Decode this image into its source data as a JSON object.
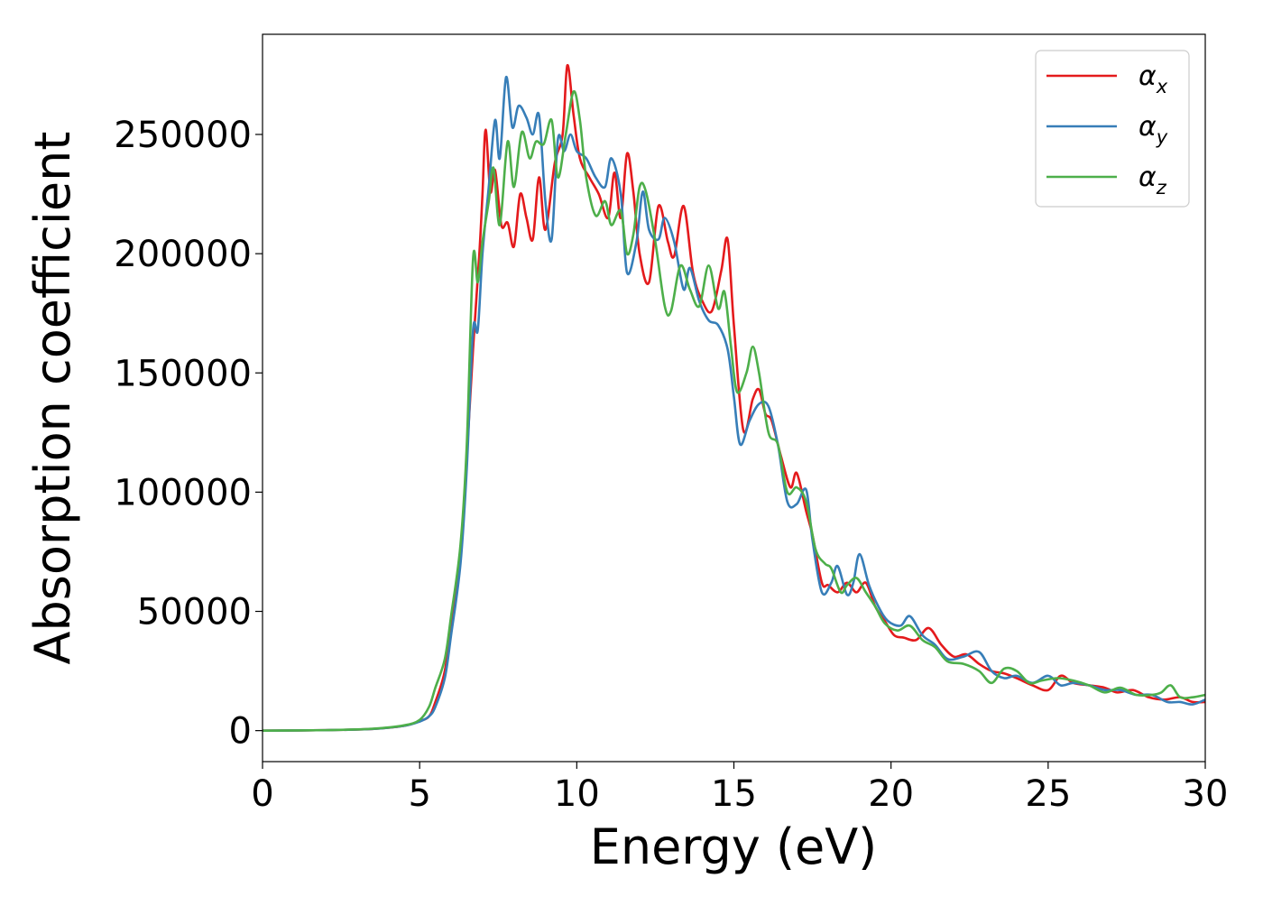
{
  "chart_data": {
    "type": "line",
    "title": "",
    "xlabel": "Energy (eV)",
    "ylabel": "Absorption coefficient",
    "xlim": [
      0,
      30
    ],
    "ylim": [
      -13000,
      292000
    ],
    "xticks": [
      0,
      5,
      10,
      15,
      20,
      25,
      30
    ],
    "xtick_labels": [
      "0",
      "5",
      "10",
      "15",
      "20",
      "25",
      "30"
    ],
    "yticks": [
      0,
      50000,
      100000,
      150000,
      200000,
      250000
    ],
    "ytick_labels": [
      "0",
      "50000",
      "100000",
      "150000",
      "200000",
      "250000"
    ],
    "grid": false,
    "legend_position": "top-right",
    "series": [
      {
        "name": "αx",
        "symbol": "α",
        "subscript": "x",
        "color": "#e41a1c",
        "points": [
          [
            0,
            0
          ],
          [
            2,
            200
          ],
          [
            3.5,
            700
          ],
          [
            4.5,
            2000
          ],
          [
            5,
            4000
          ],
          [
            5.3,
            6000
          ],
          [
            5.5,
            12000
          ],
          [
            5.8,
            25000
          ],
          [
            6.0,
            45000
          ],
          [
            6.3,
            75000
          ],
          [
            6.5,
            115000
          ],
          [
            6.7,
            160000
          ],
          [
            6.9,
            200000
          ],
          [
            7.0,
            225000
          ],
          [
            7.1,
            252000
          ],
          [
            7.25,
            226000
          ],
          [
            7.4,
            235000
          ],
          [
            7.6,
            212000
          ],
          [
            7.8,
            213000
          ],
          [
            8.0,
            203000
          ],
          [
            8.2,
            225000
          ],
          [
            8.4,
            215000
          ],
          [
            8.6,
            206000
          ],
          [
            8.8,
            232000
          ],
          [
            9.0,
            210000
          ],
          [
            9.3,
            238000
          ],
          [
            9.55,
            250000
          ],
          [
            9.7,
            279000
          ],
          [
            9.9,
            258000
          ],
          [
            10.1,
            240000
          ],
          [
            10.4,
            232000
          ],
          [
            10.7,
            225000
          ],
          [
            11.0,
            215000
          ],
          [
            11.2,
            234000
          ],
          [
            11.4,
            215000
          ],
          [
            11.6,
            242000
          ],
          [
            11.8,
            226000
          ],
          [
            12.0,
            200000
          ],
          [
            12.3,
            188000
          ],
          [
            12.6,
            220000
          ],
          [
            12.9,
            205000
          ],
          [
            13.1,
            199000
          ],
          [
            13.4,
            220000
          ],
          [
            13.7,
            192000
          ],
          [
            14.0,
            180000
          ],
          [
            14.3,
            176000
          ],
          [
            14.6,
            193000
          ],
          [
            14.8,
            206000
          ],
          [
            15.0,
            170000
          ],
          [
            15.3,
            126000
          ],
          [
            15.6,
            139000
          ],
          [
            15.8,
            143000
          ],
          [
            16.0,
            133000
          ],
          [
            16.2,
            130000
          ],
          [
            16.5,
            115000
          ],
          [
            16.8,
            102000
          ],
          [
            17.0,
            108000
          ],
          [
            17.3,
            92000
          ],
          [
            17.5,
            82000
          ],
          [
            17.8,
            62000
          ],
          [
            18.0,
            61000
          ],
          [
            18.3,
            58000
          ],
          [
            18.6,
            62000
          ],
          [
            18.9,
            58000
          ],
          [
            19.2,
            62000
          ],
          [
            19.5,
            52000
          ],
          [
            19.8,
            46000
          ],
          [
            20.1,
            40000
          ],
          [
            20.4,
            39000
          ],
          [
            20.8,
            38000
          ],
          [
            21.2,
            43000
          ],
          [
            21.6,
            36000
          ],
          [
            22.0,
            31000
          ],
          [
            22.4,
            32000
          ],
          [
            22.8,
            28000
          ],
          [
            23.2,
            25000
          ],
          [
            23.6,
            24000
          ],
          [
            24.0,
            22000
          ],
          [
            24.5,
            19000
          ],
          [
            25.0,
            17000
          ],
          [
            25.4,
            23000
          ],
          [
            25.8,
            20000
          ],
          [
            26.3,
            19000
          ],
          [
            26.8,
            18000
          ],
          [
            27.2,
            16000
          ],
          [
            27.7,
            17000
          ],
          [
            28.2,
            14000
          ],
          [
            28.7,
            13000
          ],
          [
            29.2,
            14000
          ],
          [
            29.6,
            12000
          ],
          [
            30,
            12000
          ]
        ]
      },
      {
        "name": "αy",
        "symbol": "α",
        "subscript": "y",
        "color": "#377eb8",
        "points": [
          [
            0,
            0
          ],
          [
            2,
            200
          ],
          [
            3.5,
            700
          ],
          [
            4.5,
            2000
          ],
          [
            5,
            3800
          ],
          [
            5.3,
            6000
          ],
          [
            5.5,
            10000
          ],
          [
            5.8,
            22000
          ],
          [
            6.0,
            40000
          ],
          [
            6.3,
            70000
          ],
          [
            6.5,
            110000
          ],
          [
            6.7,
            168000
          ],
          [
            6.85,
            168000
          ],
          [
            7.0,
            200000
          ],
          [
            7.2,
            228000
          ],
          [
            7.4,
            256000
          ],
          [
            7.55,
            240000
          ],
          [
            7.75,
            274000
          ],
          [
            7.95,
            253000
          ],
          [
            8.15,
            262000
          ],
          [
            8.4,
            257000
          ],
          [
            8.6,
            250000
          ],
          [
            8.8,
            258000
          ],
          [
            9.0,
            222000
          ],
          [
            9.2,
            206000
          ],
          [
            9.4,
            248000
          ],
          [
            9.6,
            243000
          ],
          [
            9.8,
            250000
          ],
          [
            10.0,
            243000
          ],
          [
            10.3,
            240000
          ],
          [
            10.6,
            232000
          ],
          [
            10.9,
            228000
          ],
          [
            11.1,
            240000
          ],
          [
            11.4,
            225000
          ],
          [
            11.6,
            192000
          ],
          [
            11.9,
            205000
          ],
          [
            12.1,
            226000
          ],
          [
            12.3,
            210000
          ],
          [
            12.6,
            206000
          ],
          [
            12.8,
            215000
          ],
          [
            13.1,
            205000
          ],
          [
            13.4,
            185000
          ],
          [
            13.6,
            194000
          ],
          [
            13.9,
            180000
          ],
          [
            14.2,
            172000
          ],
          [
            14.5,
            170000
          ],
          [
            14.8,
            160000
          ],
          [
            15.0,
            140000
          ],
          [
            15.2,
            120000
          ],
          [
            15.5,
            130000
          ],
          [
            15.8,
            137000
          ],
          [
            16.1,
            136000
          ],
          [
            16.4,
            120000
          ],
          [
            16.7,
            96000
          ],
          [
            17.0,
            95000
          ],
          [
            17.3,
            101000
          ],
          [
            17.5,
            80000
          ],
          [
            17.8,
            58000
          ],
          [
            18.1,
            62000
          ],
          [
            18.3,
            69000
          ],
          [
            18.6,
            57000
          ],
          [
            18.8,
            62000
          ],
          [
            19.0,
            74000
          ],
          [
            19.3,
            61000
          ],
          [
            19.6,
            52000
          ],
          [
            19.9,
            46000
          ],
          [
            20.3,
            44000
          ],
          [
            20.6,
            48000
          ],
          [
            21.0,
            40000
          ],
          [
            21.4,
            36000
          ],
          [
            21.8,
            30000
          ],
          [
            22.3,
            31000
          ],
          [
            22.8,
            33000
          ],
          [
            23.2,
            25000
          ],
          [
            23.6,
            22000
          ],
          [
            24.0,
            23000
          ],
          [
            24.5,
            20000
          ],
          [
            25.0,
            23000
          ],
          [
            25.4,
            19000
          ],
          [
            25.8,
            20000
          ],
          [
            26.3,
            19000
          ],
          [
            26.8,
            17000
          ],
          [
            27.3,
            17000
          ],
          [
            27.8,
            15000
          ],
          [
            28.3,
            15000
          ],
          [
            28.8,
            12000
          ],
          [
            29.2,
            12000
          ],
          [
            29.6,
            11000
          ],
          [
            30,
            13000
          ]
        ]
      },
      {
        "name": "αz",
        "symbol": "α",
        "subscript": "z",
        "color": "#4daf4a",
        "points": [
          [
            0,
            0
          ],
          [
            2,
            200
          ],
          [
            3.5,
            800
          ],
          [
            4.5,
            2200
          ],
          [
            5,
            4500
          ],
          [
            5.3,
            10000
          ],
          [
            5.5,
            18000
          ],
          [
            5.8,
            30000
          ],
          [
            6.0,
            48000
          ],
          [
            6.3,
            78000
          ],
          [
            6.5,
            120000
          ],
          [
            6.7,
            198000
          ],
          [
            6.85,
            188000
          ],
          [
            7.0,
            205000
          ],
          [
            7.2,
            222000
          ],
          [
            7.35,
            236000
          ],
          [
            7.55,
            212000
          ],
          [
            7.8,
            247000
          ],
          [
            8.0,
            228000
          ],
          [
            8.25,
            251000
          ],
          [
            8.5,
            240000
          ],
          [
            8.7,
            247000
          ],
          [
            8.95,
            246000
          ],
          [
            9.2,
            256000
          ],
          [
            9.4,
            232000
          ],
          [
            9.65,
            250000
          ],
          [
            9.9,
            268000
          ],
          [
            10.1,
            256000
          ],
          [
            10.3,
            232000
          ],
          [
            10.6,
            216000
          ],
          [
            10.9,
            222000
          ],
          [
            11.1,
            212000
          ],
          [
            11.4,
            218000
          ],
          [
            11.6,
            200000
          ],
          [
            11.8,
            208000
          ],
          [
            12.0,
            228000
          ],
          [
            12.2,
            226000
          ],
          [
            12.5,
            205000
          ],
          [
            12.8,
            178000
          ],
          [
            13.0,
            176000
          ],
          [
            13.3,
            195000
          ],
          [
            13.6,
            185000
          ],
          [
            13.9,
            178000
          ],
          [
            14.2,
            195000
          ],
          [
            14.5,
            177000
          ],
          [
            14.7,
            184000
          ],
          [
            14.9,
            162000
          ],
          [
            15.1,
            142000
          ],
          [
            15.4,
            150000
          ],
          [
            15.6,
            161000
          ],
          [
            15.8,
            150000
          ],
          [
            16.1,
            125000
          ],
          [
            16.4,
            120000
          ],
          [
            16.7,
            100000
          ],
          [
            17.0,
            102000
          ],
          [
            17.3,
            96000
          ],
          [
            17.6,
            76000
          ],
          [
            17.9,
            70000
          ],
          [
            18.1,
            68000
          ],
          [
            18.4,
            58000
          ],
          [
            18.6,
            61000
          ],
          [
            18.9,
            64000
          ],
          [
            19.2,
            58000
          ],
          [
            19.5,
            52000
          ],
          [
            19.8,
            45000
          ],
          [
            20.2,
            42000
          ],
          [
            20.6,
            44000
          ],
          [
            21.0,
            38000
          ],
          [
            21.4,
            35000
          ],
          [
            21.8,
            29000
          ],
          [
            22.3,
            28000
          ],
          [
            22.8,
            25000
          ],
          [
            23.2,
            20000
          ],
          [
            23.6,
            26000
          ],
          [
            24.0,
            25000
          ],
          [
            24.4,
            20000
          ],
          [
            24.8,
            21000
          ],
          [
            25.3,
            22000
          ],
          [
            25.8,
            21000
          ],
          [
            26.3,
            19000
          ],
          [
            26.8,
            16000
          ],
          [
            27.3,
            18000
          ],
          [
            27.8,
            15000
          ],
          [
            28.3,
            15000
          ],
          [
            28.6,
            16000
          ],
          [
            28.9,
            19000
          ],
          [
            29.2,
            14000
          ],
          [
            29.6,
            14000
          ],
          [
            30,
            15000
          ]
        ]
      }
    ]
  }
}
